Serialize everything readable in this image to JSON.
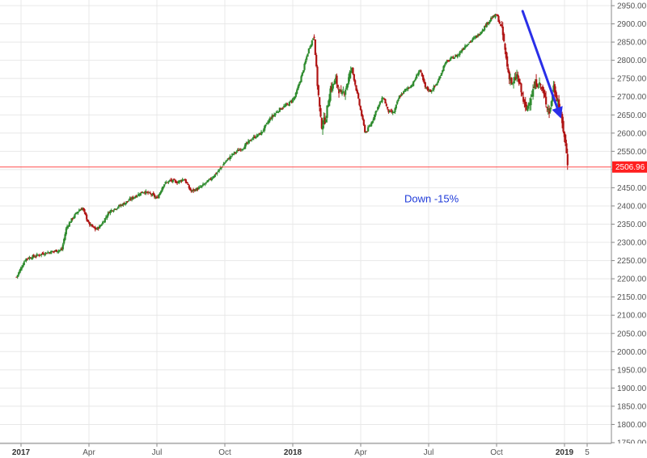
{
  "chart_data": {
    "type": "candlestick",
    "title": "",
    "xlabel": "",
    "ylabel": "",
    "ylim": [
      1750,
      2950
    ],
    "grid": true,
    "y_ticks": [
      "2950.00",
      "2900.00",
      "2850.00",
      "2800.00",
      "2750.00",
      "2700.00",
      "2650.00",
      "2600.00",
      "2550.00",
      "2500.00",
      "2450.00",
      "2400.00",
      "2350.00",
      "2300.00",
      "2250.00",
      "2200.00",
      "2150.00",
      "2100.00",
      "2050.00",
      "2000.00",
      "1950.00",
      "1900.00",
      "1850.00",
      "1800.00",
      "1750.00"
    ],
    "x_ticks": [
      {
        "label": "2017",
        "month": 0,
        "bold": true
      },
      {
        "label": "Apr",
        "month": 3,
        "bold": false
      },
      {
        "label": "Jul",
        "month": 6,
        "bold": false
      },
      {
        "label": "Oct",
        "month": 9,
        "bold": false
      },
      {
        "label": "2018",
        "month": 12,
        "bold": true
      },
      {
        "label": "Apr",
        "month": 15,
        "bold": false
      },
      {
        "label": "Jul",
        "month": 18,
        "bold": false
      },
      {
        "label": "Oct",
        "month": 21,
        "bold": false
      },
      {
        "label": "2019",
        "month": 24,
        "bold": true
      },
      {
        "label": "5",
        "month": 25,
        "bold": false
      }
    ],
    "series": [
      {
        "close_points": [
          [
            -0.2,
            2205
          ],
          [
            0.2,
            2255
          ],
          [
            0.6,
            2262
          ],
          [
            1.0,
            2270
          ],
          [
            1.4,
            2275
          ],
          [
            1.8,
            2280
          ],
          [
            2.0,
            2340
          ],
          [
            2.2,
            2360
          ],
          [
            2.5,
            2385
          ],
          [
            2.7,
            2395
          ],
          [
            3.0,
            2350
          ],
          [
            3.3,
            2335
          ],
          [
            3.5,
            2345
          ],
          [
            3.9,
            2385
          ],
          [
            4.2,
            2395
          ],
          [
            4.5,
            2405
          ],
          [
            5.0,
            2425
          ],
          [
            5.4,
            2440
          ],
          [
            5.8,
            2430
          ],
          [
            6.0,
            2420
          ],
          [
            6.3,
            2460
          ],
          [
            6.6,
            2470
          ],
          [
            6.9,
            2465
          ],
          [
            7.2,
            2475
          ],
          [
            7.5,
            2440
          ],
          [
            7.9,
            2450
          ],
          [
            8.3,
            2470
          ],
          [
            8.7,
            2495
          ],
          [
            9.0,
            2520
          ],
          [
            9.4,
            2545
          ],
          [
            9.8,
            2560
          ],
          [
            10.2,
            2585
          ],
          [
            10.6,
            2600
          ],
          [
            11.0,
            2640
          ],
          [
            11.4,
            2665
          ],
          [
            11.8,
            2680
          ],
          [
            12.1,
            2700
          ],
          [
            12.4,
            2760
          ],
          [
            12.7,
            2830
          ],
          [
            12.95,
            2870
          ],
          [
            13.05,
            2760
          ],
          [
            13.25,
            2620
          ],
          [
            13.45,
            2640
          ],
          [
            13.65,
            2720
          ],
          [
            13.9,
            2745
          ],
          [
            14.15,
            2700
          ],
          [
            14.4,
            2735
          ],
          [
            14.6,
            2780
          ],
          [
            14.8,
            2720
          ],
          [
            15.0,
            2660
          ],
          [
            15.2,
            2600
          ],
          [
            15.45,
            2625
          ],
          [
            15.7,
            2665
          ],
          [
            16.0,
            2700
          ],
          [
            16.2,
            2660
          ],
          [
            16.45,
            2655
          ],
          [
            16.7,
            2700
          ],
          [
            17.0,
            2720
          ],
          [
            17.3,
            2735
          ],
          [
            17.6,
            2775
          ],
          [
            17.85,
            2725
          ],
          [
            18.1,
            2715
          ],
          [
            18.4,
            2740
          ],
          [
            18.7,
            2790
          ],
          [
            19.0,
            2805
          ],
          [
            19.3,
            2815
          ],
          [
            19.6,
            2840
          ],
          [
            19.9,
            2855
          ],
          [
            20.2,
            2870
          ],
          [
            20.5,
            2895
          ],
          [
            20.75,
            2915
          ],
          [
            21.0,
            2925
          ],
          [
            21.25,
            2880
          ],
          [
            21.5,
            2770
          ],
          [
            21.7,
            2730
          ],
          [
            21.9,
            2760
          ],
          [
            22.1,
            2710
          ],
          [
            22.3,
            2660
          ],
          [
            22.5,
            2700
          ],
          [
            22.75,
            2740
          ],
          [
            22.95,
            2730
          ],
          [
            23.15,
            2690
          ],
          [
            23.35,
            2655
          ],
          [
            23.5,
            2730
          ],
          [
            23.7,
            2690
          ],
          [
            23.85,
            2640
          ],
          [
            24.0,
            2590
          ],
          [
            24.15,
            2510
          ]
        ]
      }
    ],
    "current_price": {
      "value": 2506.96,
      "label": "2506.96"
    },
    "annotation": {
      "text": "Down -15%",
      "x_month": 18.0,
      "y_value": 2410,
      "color": "#1f3bd9"
    },
    "arrow": {
      "from": [
        22.15,
        2935
      ],
      "to": [
        23.85,
        2640
      ],
      "color": "#2a2fe8"
    },
    "colors": {
      "up": "#2e8b2e",
      "down": "#b01414",
      "grid": "#e8e8e8",
      "price_line": "#ff4d4d",
      "axis": "#888888"
    }
  }
}
